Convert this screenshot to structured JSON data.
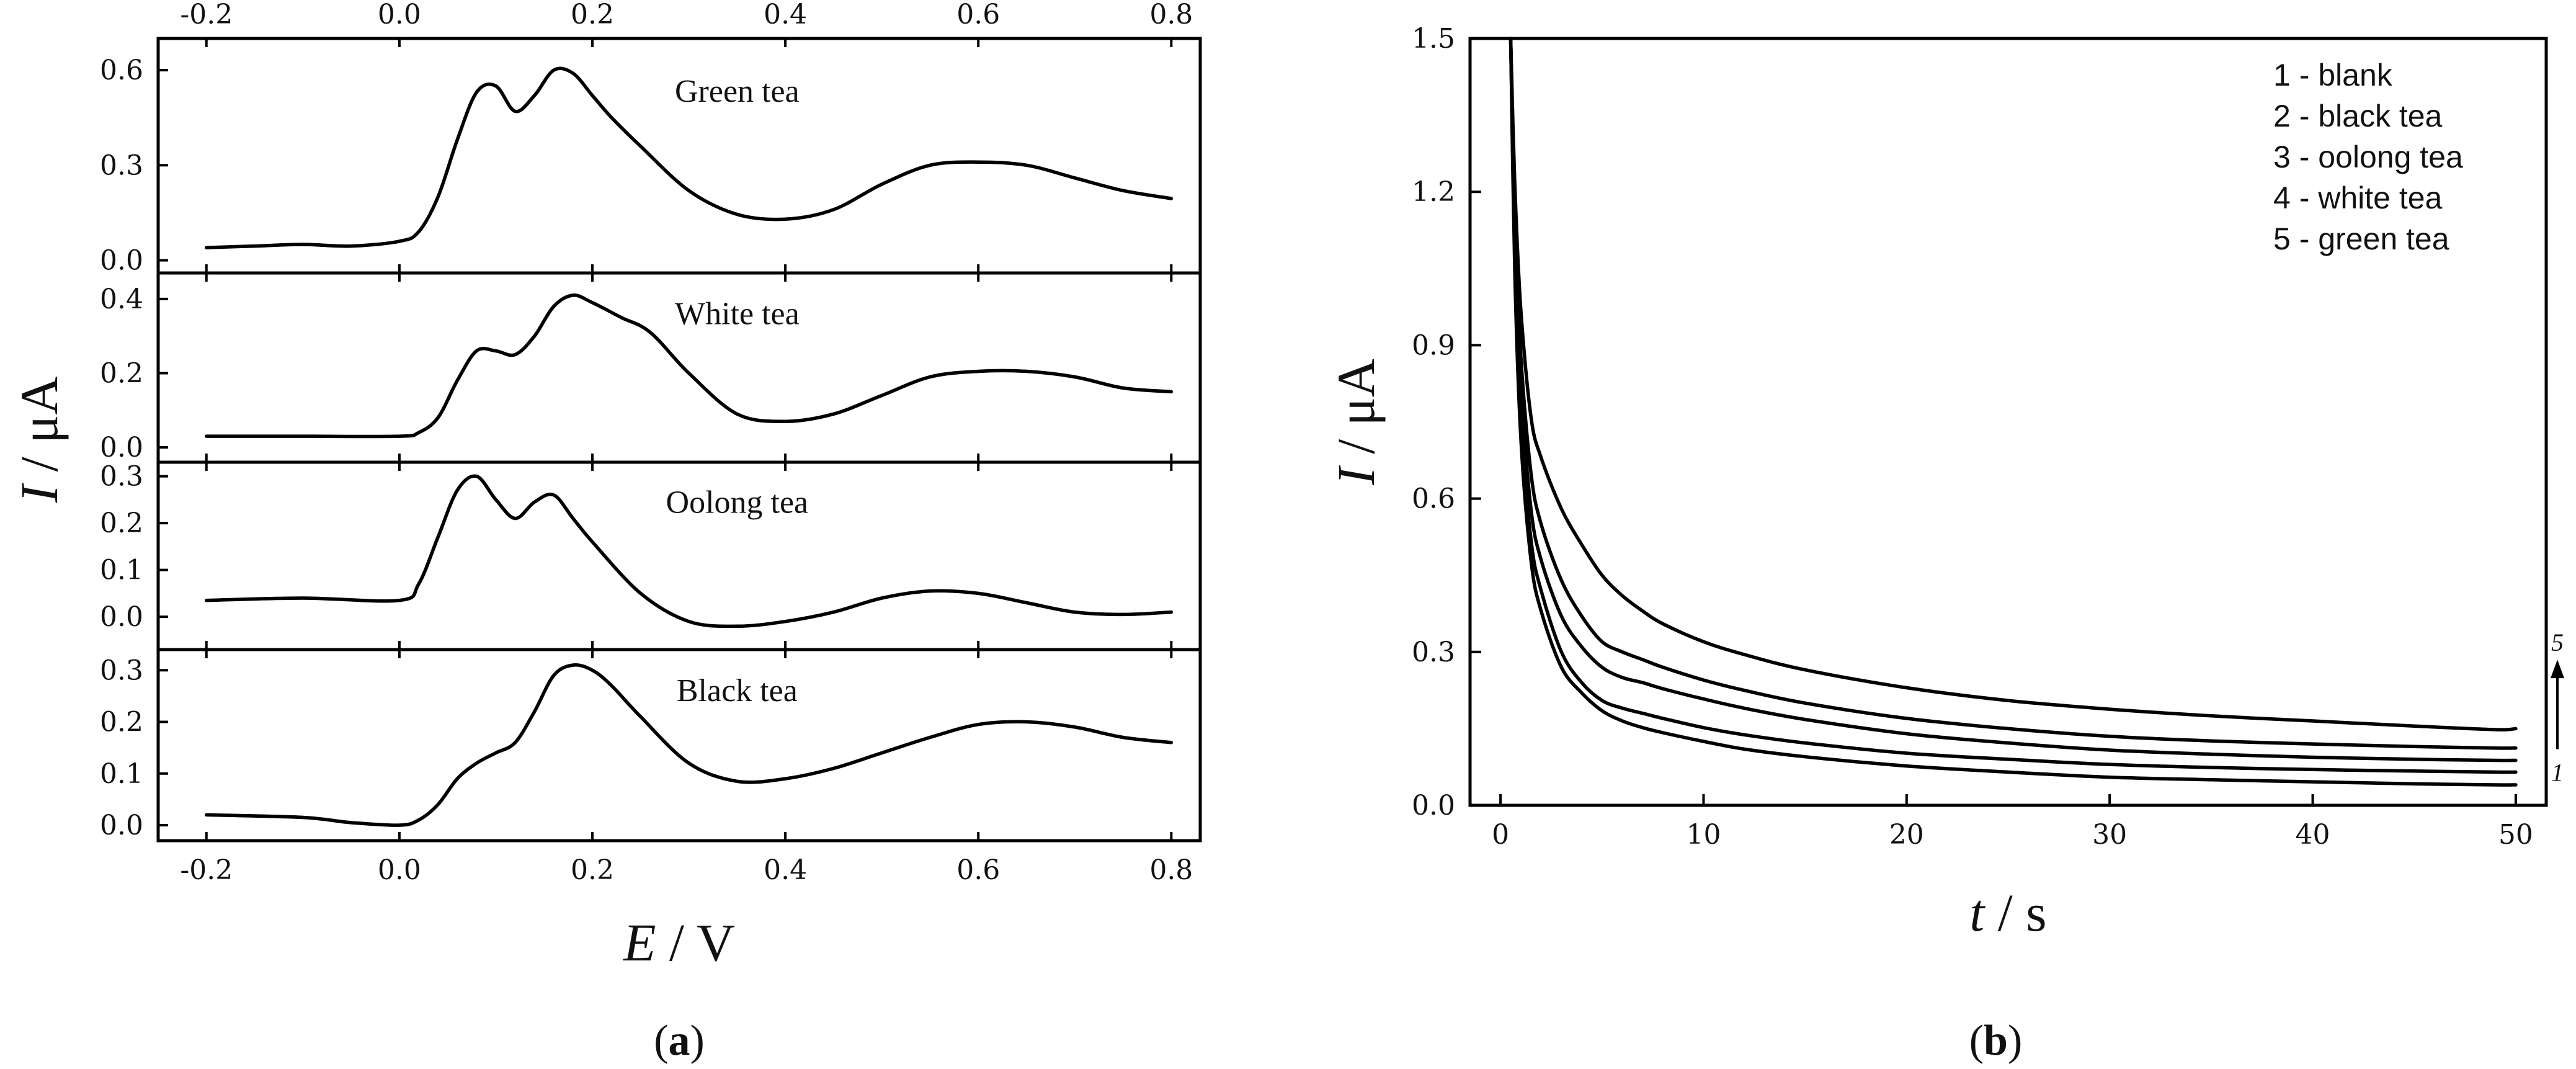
{
  "chart_data": [
    {
      "id": "a",
      "type": "line",
      "caption": "a",
      "xlabel": "E / V",
      "xlabel_italic": "E",
      "xlabel_unit": " / V",
      "ylabel": "I / μA",
      "ylabel_italic": "I",
      "ylabel_unit": " / μA",
      "xlim": [
        -0.25,
        0.83
      ],
      "xticks": [
        -0.2,
        0.0,
        0.2,
        0.4,
        0.6,
        0.8
      ],
      "xtick_labels": [
        "-0.2",
        "0.0",
        "0.2",
        "0.4",
        "0.6",
        "0.8"
      ],
      "panels": [
        {
          "name": "Green tea",
          "ylim": [
            -0.04,
            0.7
          ],
          "yticks": [
            0.0,
            0.3,
            0.6
          ],
          "ytick_labels": [
            "0.0",
            "0.3",
            "0.6"
          ],
          "x": [
            -0.2,
            -0.15,
            -0.1,
            -0.05,
            0.0,
            0.02,
            0.04,
            0.06,
            0.08,
            0.1,
            0.12,
            0.14,
            0.16,
            0.18,
            0.2,
            0.22,
            0.25,
            0.3,
            0.35,
            0.4,
            0.45,
            0.5,
            0.55,
            0.6,
            0.65,
            0.7,
            0.75,
            0.8
          ],
          "y": [
            0.04,
            0.045,
            0.05,
            0.045,
            0.06,
            0.09,
            0.2,
            0.38,
            0.53,
            0.55,
            0.47,
            0.52,
            0.6,
            0.59,
            0.52,
            0.45,
            0.36,
            0.22,
            0.145,
            0.13,
            0.16,
            0.24,
            0.3,
            0.31,
            0.3,
            0.26,
            0.22,
            0.195
          ]
        },
        {
          "name": "White tea",
          "ylim": [
            -0.04,
            0.47
          ],
          "yticks": [
            0.0,
            0.2,
            0.4
          ],
          "ytick_labels": [
            "0.0",
            "0.2",
            "0.4"
          ],
          "x": [
            -0.2,
            -0.1,
            0.0,
            0.02,
            0.04,
            0.06,
            0.08,
            0.1,
            0.12,
            0.14,
            0.16,
            0.18,
            0.2,
            0.23,
            0.26,
            0.3,
            0.35,
            0.4,
            0.45,
            0.5,
            0.55,
            0.6,
            0.65,
            0.7,
            0.75,
            0.8
          ],
          "y": [
            0.03,
            0.03,
            0.03,
            0.04,
            0.08,
            0.18,
            0.26,
            0.26,
            0.25,
            0.3,
            0.38,
            0.41,
            0.39,
            0.35,
            0.31,
            0.2,
            0.09,
            0.07,
            0.09,
            0.14,
            0.19,
            0.205,
            0.205,
            0.19,
            0.16,
            0.15
          ]
        },
        {
          "name": "Oolong tea",
          "ylim": [
            -0.07,
            0.33
          ],
          "yticks": [
            0.0,
            0.1,
            0.2,
            0.3
          ],
          "ytick_labels": [
            "0.0",
            "0.1",
            "0.2",
            "0.3"
          ],
          "x": [
            -0.2,
            -0.1,
            0.0,
            0.02,
            0.04,
            0.06,
            0.08,
            0.1,
            0.12,
            0.14,
            0.16,
            0.18,
            0.2,
            0.25,
            0.3,
            0.35,
            0.4,
            0.45,
            0.5,
            0.55,
            0.6,
            0.65,
            0.7,
            0.75,
            0.8
          ],
          "y": [
            0.035,
            0.04,
            0.035,
            0.07,
            0.17,
            0.27,
            0.3,
            0.25,
            0.21,
            0.245,
            0.26,
            0.21,
            0.16,
            0.05,
            -0.01,
            -0.02,
            -0.01,
            0.01,
            0.04,
            0.055,
            0.05,
            0.03,
            0.01,
            0.005,
            0.01
          ]
        },
        {
          "name": "Black tea",
          "ylim": [
            -0.03,
            0.34
          ],
          "yticks": [
            0.0,
            0.1,
            0.2,
            0.3
          ],
          "ytick_labels": [
            "0.0",
            "0.1",
            "0.2",
            "0.3"
          ],
          "x": [
            -0.2,
            -0.1,
            -0.05,
            0.0,
            0.02,
            0.04,
            0.06,
            0.08,
            0.1,
            0.12,
            0.14,
            0.16,
            0.18,
            0.2,
            0.22,
            0.25,
            0.3,
            0.35,
            0.4,
            0.45,
            0.5,
            0.55,
            0.6,
            0.65,
            0.7,
            0.75,
            0.8
          ],
          "y": [
            0.02,
            0.015,
            0.005,
            0.0,
            0.01,
            0.04,
            0.09,
            0.12,
            0.14,
            0.16,
            0.22,
            0.29,
            0.31,
            0.3,
            0.27,
            0.21,
            0.12,
            0.085,
            0.09,
            0.11,
            0.14,
            0.17,
            0.195,
            0.2,
            0.19,
            0.17,
            0.16
          ]
        }
      ]
    },
    {
      "id": "b",
      "type": "line",
      "caption": "b",
      "xlabel": "t / s",
      "xlabel_italic": "t",
      "xlabel_unit": " / s",
      "ylabel": "I / μA",
      "ylabel_italic": "I",
      "ylabel_unit": " / μA",
      "xlim": [
        -1.5,
        51.5
      ],
      "ylim": [
        0.0,
        1.5
      ],
      "xticks": [
        0,
        10,
        20,
        30,
        40,
        50
      ],
      "xtick_labels": [
        "0",
        "10",
        "20",
        "30",
        "40",
        "50"
      ],
      "yticks": [
        0.0,
        0.3,
        0.6,
        0.9,
        1.2,
        1.5
      ],
      "ytick_labels": [
        "0.0",
        "0.3",
        "0.6",
        "0.9",
        "1.2",
        "1.5"
      ],
      "legend": [
        "1 - blank",
        "2 - black tea",
        "3 - oolong tea",
        "4 - white tea",
        "5 - green tea"
      ],
      "legend_position": "top-right",
      "annotation": {
        "from": "1",
        "to": "5"
      },
      "x": [
        0.5,
        0.7,
        1,
        1.5,
        2,
        3,
        4,
        5,
        6,
        7,
        8,
        10,
        12,
        15,
        20,
        25,
        30,
        35,
        40,
        45,
        49,
        50
      ],
      "series": [
        {
          "name": "1 - blank",
          "values": [
            1.5,
            1.05,
            0.72,
            0.48,
            0.38,
            0.27,
            0.22,
            0.185,
            0.165,
            0.152,
            0.142,
            0.125,
            0.11,
            0.095,
            0.077,
            0.065,
            0.055,
            0.05,
            0.046,
            0.042,
            0.04,
            0.04
          ]
        },
        {
          "name": "2 - black tea",
          "values": [
            1.5,
            1.08,
            0.76,
            0.52,
            0.42,
            0.3,
            0.24,
            0.205,
            0.19,
            0.18,
            0.17,
            0.152,
            0.138,
            0.122,
            0.102,
            0.09,
            0.08,
            0.074,
            0.07,
            0.067,
            0.065,
            0.065
          ]
        },
        {
          "name": "3 - oolong tea",
          "values": [
            1.5,
            1.12,
            0.82,
            0.58,
            0.48,
            0.37,
            0.31,
            0.27,
            0.25,
            0.24,
            0.228,
            0.208,
            0.19,
            0.168,
            0.14,
            0.122,
            0.108,
            0.1,
            0.094,
            0.09,
            0.088,
            0.088
          ]
        },
        {
          "name": "4 - white tea",
          "values": [
            1.5,
            1.16,
            0.88,
            0.65,
            0.55,
            0.44,
            0.37,
            0.32,
            0.3,
            0.285,
            0.27,
            0.245,
            0.225,
            0.2,
            0.17,
            0.15,
            0.135,
            0.126,
            0.12,
            0.115,
            0.112,
            0.112
          ]
        },
        {
          "name": "5 - green tea",
          "values": [
            1.5,
            1.22,
            0.97,
            0.76,
            0.68,
            0.58,
            0.51,
            0.45,
            0.41,
            0.38,
            0.355,
            0.32,
            0.295,
            0.265,
            0.23,
            0.205,
            0.188,
            0.175,
            0.165,
            0.155,
            0.148,
            0.15
          ]
        }
      ]
    }
  ]
}
